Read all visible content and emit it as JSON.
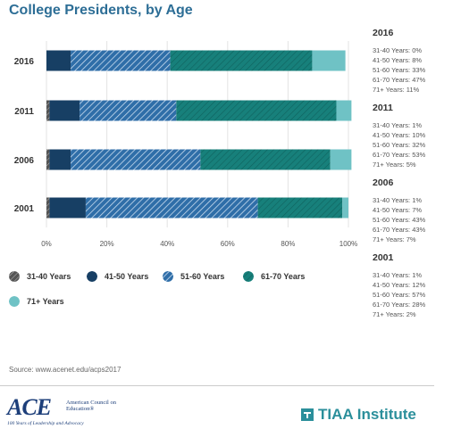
{
  "title": "College Presidents, by Age",
  "colors": {
    "c31_40": "#4a4a4a",
    "c41_50": "#173f64",
    "c51_60": "#2f6ea8",
    "c61_70": "#17807b",
    "c71": "#6fc2c5"
  },
  "chart_data": {
    "type": "bar",
    "orientation": "horizontal",
    "stacked": true,
    "categories": [
      "2016",
      "2011",
      "2006",
      "2001"
    ],
    "series": [
      {
        "name": "31-40 Years",
        "values": [
          0,
          1,
          1,
          1
        ],
        "pattern": "hatch-dark"
      },
      {
        "name": "41-50 Years",
        "values": [
          8,
          10,
          7,
          12
        ],
        "pattern": "solid"
      },
      {
        "name": "51-60 Years",
        "values": [
          33,
          32,
          43,
          57
        ],
        "pattern": "hatch"
      },
      {
        "name": "61-70 Years",
        "values": [
          47,
          53,
          43,
          28
        ],
        "pattern": "hatch-light"
      },
      {
        "name": "71+ Years",
        "values": [
          11,
          5,
          7,
          2
        ],
        "pattern": "solid"
      }
    ],
    "xlim": [
      0,
      100
    ],
    "x_ticks": [
      "0%",
      "20%",
      "40%",
      "60%",
      "80%",
      "100%"
    ],
    "grid": true,
    "legend_position": "bottom"
  },
  "side_panel": [
    {
      "year": "2016",
      "lines": [
        "31-40 Years: 0%",
        "41-50 Years: 8%",
        "51-60 Years: 33%",
        "61-70 Years: 47%",
        "71+ Years: 11%"
      ]
    },
    {
      "year": "2011",
      "lines": [
        "31-40 Years: 1%",
        "41-50 Years: 10%",
        "51-60 Years: 32%",
        "61-70 Years: 53%",
        "71+ Years: 5%"
      ]
    },
    {
      "year": "2006",
      "lines": [
        "31-40 Years: 1%",
        "41-50 Years: 7%",
        "51-60 Years: 43%",
        "61-70 Years: 43%",
        "71+ Years: 7%"
      ]
    },
    {
      "year": "2001",
      "lines": [
        "31-40 Years: 1%",
        "41-50 Years: 12%",
        "51-60 Years: 57%",
        "61-70 Years: 28%",
        "71+ Years: 2%"
      ]
    }
  ],
  "source": "Source: www.acenet.edu/acps2017",
  "ace": {
    "mark": "ACE",
    "name": "American Council on Education®",
    "tagline": "100 Years of Leadership and Advocacy"
  },
  "tiaa": {
    "text": "TIAA Institute"
  }
}
